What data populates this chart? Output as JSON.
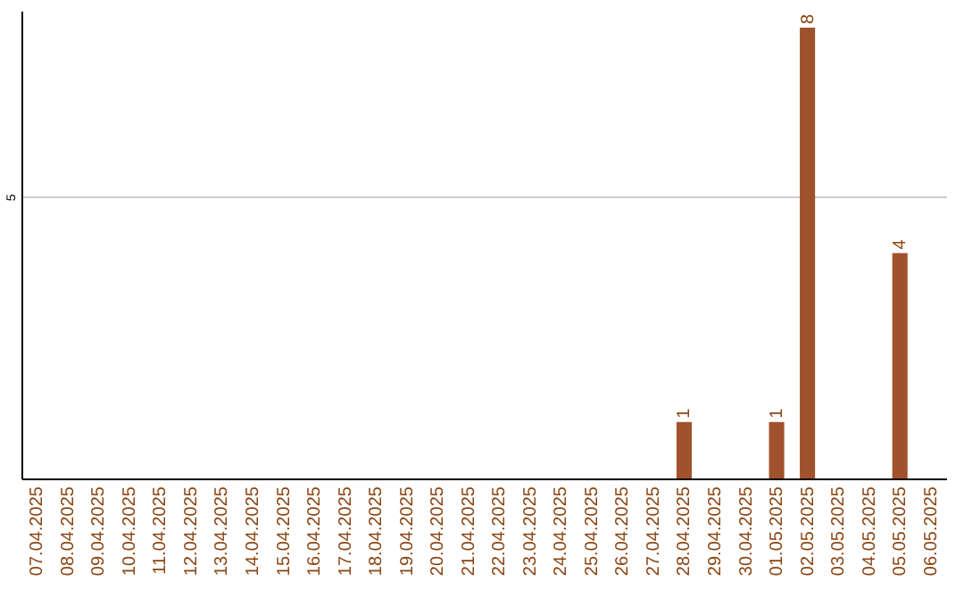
{
  "chart_data": {
    "type": "bar",
    "categories": [
      "07.04.2025",
      "08.04.2025",
      "09.04.2025",
      "10.04.2025",
      "11.04.2025",
      "12.04.2025",
      "13.04.2025",
      "14.04.2025",
      "15.04.2025",
      "16.04.2025",
      "17.04.2025",
      "18.04.2025",
      "19.04.2025",
      "20.04.2025",
      "21.04.2025",
      "22.04.2025",
      "23.04.2025",
      "24.04.2025",
      "25.04.2025",
      "26.04.2025",
      "27.04.2025",
      "28.04.2025",
      "29.04.2025",
      "30.04.2025",
      "01.05.2025",
      "02.05.2025",
      "03.05.2025",
      "04.05.2025",
      "05.05.2025",
      "06.05.2025"
    ],
    "values": [
      null,
      null,
      null,
      null,
      null,
      null,
      null,
      null,
      null,
      null,
      null,
      null,
      null,
      null,
      null,
      null,
      null,
      null,
      null,
      null,
      null,
      1,
      null,
      null,
      1,
      8,
      null,
      null,
      4,
      null
    ],
    "color": "#a0522d",
    "data_labels": true,
    "ylim": [
      0,
      8.3
    ],
    "yticks": [
      5
    ],
    "grid": "y"
  }
}
